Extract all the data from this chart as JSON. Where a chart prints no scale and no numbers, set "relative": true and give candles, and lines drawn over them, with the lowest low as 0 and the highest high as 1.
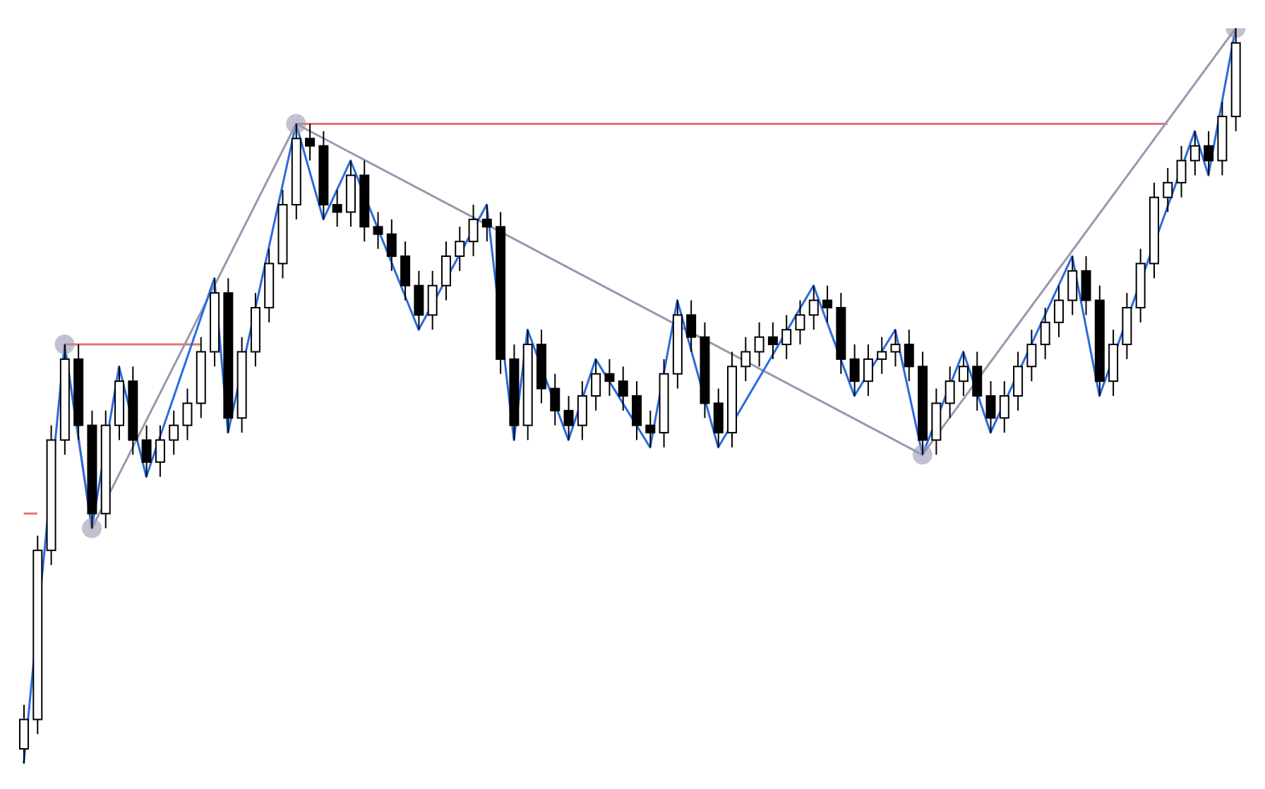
{
  "chart_data": {
    "type": "candlestick",
    "relative": true,
    "color": "#000000",
    "categories": [
      null,
      null,
      null,
      null,
      null,
      null,
      null,
      null,
      null,
      null,
      null,
      null,
      null,
      null,
      null,
      null,
      null,
      null,
      null,
      null,
      null,
      null,
      null,
      null,
      null,
      null,
      null,
      null,
      null,
      null,
      null,
      null,
      null,
      null,
      null,
      null,
      null,
      null,
      null,
      null,
      null,
      null,
      null,
      null,
      null,
      null,
      null,
      null,
      null,
      null,
      null,
      null,
      null,
      null,
      null,
      null,
      null,
      null,
      null,
      null,
      null,
      null,
      null,
      null,
      null,
      null,
      null,
      null,
      null,
      null,
      null,
      null,
      null,
      null,
      null,
      null,
      null,
      null,
      null,
      null,
      null,
      null,
      null,
      null,
      null,
      null,
      null,
      null,
      null,
      null
    ],
    "ohlc": [
      [
        0.02,
        0.08,
        0.0,
        0.06
      ],
      [
        0.06,
        0.31,
        0.04,
        0.29
      ],
      [
        0.29,
        0.46,
        0.27,
        0.44
      ],
      [
        0.44,
        0.57,
        0.42,
        0.55
      ],
      [
        0.55,
        0.57,
        0.44,
        0.46
      ],
      [
        0.46,
        0.48,
        0.32,
        0.34
      ],
      [
        0.34,
        0.48,
        0.32,
        0.46
      ],
      [
        0.46,
        0.54,
        0.44,
        0.52
      ],
      [
        0.52,
        0.54,
        0.42,
        0.44
      ],
      [
        0.44,
        0.46,
        0.39,
        0.41
      ],
      [
        0.41,
        0.46,
        0.39,
        0.44
      ],
      [
        0.44,
        0.48,
        0.42,
        0.46
      ],
      [
        0.46,
        0.51,
        0.44,
        0.49
      ],
      [
        0.49,
        0.58,
        0.47,
        0.56
      ],
      [
        0.56,
        0.66,
        0.54,
        0.64
      ],
      [
        0.64,
        0.66,
        0.45,
        0.47
      ],
      [
        0.47,
        0.58,
        0.45,
        0.56
      ],
      [
        0.56,
        0.64,
        0.54,
        0.62
      ],
      [
        0.62,
        0.7,
        0.6,
        0.68
      ],
      [
        0.68,
        0.78,
        0.66,
        0.76
      ],
      [
        0.76,
        0.87,
        0.74,
        0.85
      ],
      [
        0.85,
        0.87,
        0.82,
        0.84
      ],
      [
        0.84,
        0.86,
        0.74,
        0.76
      ],
      [
        0.76,
        0.78,
        0.73,
        0.75
      ],
      [
        0.75,
        0.82,
        0.73,
        0.8
      ],
      [
        0.8,
        0.82,
        0.71,
        0.73
      ],
      [
        0.73,
        0.75,
        0.7,
        0.72
      ],
      [
        0.72,
        0.74,
        0.67,
        0.69
      ],
      [
        0.69,
        0.71,
        0.63,
        0.65
      ],
      [
        0.65,
        0.67,
        0.59,
        0.61
      ],
      [
        0.61,
        0.67,
        0.59,
        0.65
      ],
      [
        0.65,
        0.71,
        0.63,
        0.69
      ],
      [
        0.69,
        0.73,
        0.67,
        0.71
      ],
      [
        0.71,
        0.76,
        0.69,
        0.74
      ],
      [
        0.74,
        0.76,
        0.71,
        0.73
      ],
      [
        0.73,
        0.75,
        0.53,
        0.55
      ],
      [
        0.55,
        0.57,
        0.44,
        0.46
      ],
      [
        0.46,
        0.59,
        0.44,
        0.57
      ],
      [
        0.57,
        0.59,
        0.49,
        0.51
      ],
      [
        0.51,
        0.53,
        0.46,
        0.48
      ],
      [
        0.48,
        0.5,
        0.44,
        0.46
      ],
      [
        0.46,
        0.52,
        0.44,
        0.5
      ],
      [
        0.5,
        0.55,
        0.48,
        0.53
      ],
      [
        0.53,
        0.55,
        0.5,
        0.52
      ],
      [
        0.52,
        0.54,
        0.48,
        0.5
      ],
      [
        0.5,
        0.52,
        0.44,
        0.46
      ],
      [
        0.46,
        0.48,
        0.43,
        0.45
      ],
      [
        0.45,
        0.55,
        0.43,
        0.53
      ],
      [
        0.53,
        0.63,
        0.51,
        0.61
      ],
      [
        0.61,
        0.63,
        0.56,
        0.58
      ],
      [
        0.58,
        0.6,
        0.47,
        0.49
      ],
      [
        0.49,
        0.51,
        0.43,
        0.45
      ],
      [
        0.45,
        0.56,
        0.43,
        0.54
      ],
      [
        0.54,
        0.58,
        0.52,
        0.56
      ],
      [
        0.56,
        0.6,
        0.54,
        0.58
      ],
      [
        0.58,
        0.6,
        0.55,
        0.57
      ],
      [
        0.57,
        0.61,
        0.55,
        0.59
      ],
      [
        0.59,
        0.63,
        0.57,
        0.61
      ],
      [
        0.61,
        0.65,
        0.59,
        0.63
      ],
      [
        0.63,
        0.65,
        0.6,
        0.62
      ],
      [
        0.62,
        0.64,
        0.53,
        0.55
      ],
      [
        0.55,
        0.57,
        0.5,
        0.52
      ],
      [
        0.52,
        0.57,
        0.5,
        0.55
      ],
      [
        0.55,
        0.58,
        0.53,
        0.56
      ],
      [
        0.56,
        0.59,
        0.54,
        0.57
      ],
      [
        0.57,
        0.59,
        0.52,
        0.54
      ],
      [
        0.54,
        0.56,
        0.42,
        0.44
      ],
      [
        0.44,
        0.51,
        0.42,
        0.49
      ],
      [
        0.49,
        0.54,
        0.47,
        0.52
      ],
      [
        0.52,
        0.56,
        0.5,
        0.54
      ],
      [
        0.54,
        0.56,
        0.48,
        0.5
      ],
      [
        0.5,
        0.52,
        0.45,
        0.47
      ],
      [
        0.47,
        0.52,
        0.45,
        0.5
      ],
      [
        0.5,
        0.56,
        0.48,
        0.54
      ],
      [
        0.54,
        0.59,
        0.52,
        0.57
      ],
      [
        0.57,
        0.62,
        0.55,
        0.6
      ],
      [
        0.6,
        0.65,
        0.58,
        0.63
      ],
      [
        0.63,
        0.69,
        0.61,
        0.67
      ],
      [
        0.67,
        0.69,
        0.61,
        0.63
      ],
      [
        0.63,
        0.65,
        0.5,
        0.52
      ],
      [
        0.52,
        0.59,
        0.5,
        0.57
      ],
      [
        0.57,
        0.64,
        0.55,
        0.62
      ],
      [
        0.62,
        0.7,
        0.6,
        0.68
      ],
      [
        0.68,
        0.79,
        0.66,
        0.77
      ],
      [
        0.77,
        0.81,
        0.75,
        0.79
      ],
      [
        0.79,
        0.84,
        0.77,
        0.82
      ],
      [
        0.82,
        0.86,
        0.8,
        0.84
      ],
      [
        0.84,
        0.86,
        0.8,
        0.82
      ],
      [
        0.82,
        0.9,
        0.8,
        0.88
      ],
      [
        0.88,
        1.0,
        0.86,
        0.98
      ]
    ],
    "series": [
      {
        "type": "line",
        "color": "#e57373",
        "values": [
          0.34,
          0.34,
          null,
          null,
          null,
          null,
          null,
          null,
          null,
          null,
          null,
          null,
          null,
          null,
          null,
          null,
          null,
          null,
          null,
          null,
          null,
          null,
          null,
          null,
          null,
          null,
          null,
          null,
          null,
          null,
          null,
          null,
          null,
          null,
          null,
          null,
          null,
          null,
          null,
          null,
          null,
          null,
          null,
          null,
          null,
          null,
          null,
          null,
          null,
          null,
          null,
          null,
          null,
          null,
          null,
          null,
          null,
          null,
          null,
          null,
          null,
          null,
          null,
          null,
          null,
          null,
          null,
          null,
          null,
          null,
          null,
          null,
          null,
          null,
          null,
          null,
          null,
          null,
          null,
          null,
          null,
          null,
          null,
          null,
          null,
          null,
          null,
          null,
          null,
          null
        ]
      },
      {
        "type": "line",
        "color": "#e57373",
        "values": [
          null,
          null,
          null,
          0.57,
          null,
          null,
          null,
          null,
          null,
          null,
          null,
          null,
          null,
          0.57,
          null,
          null,
          null,
          null,
          null,
          null,
          null,
          null,
          null,
          null,
          null,
          null,
          null,
          null,
          null,
          null,
          null,
          null,
          null,
          null,
          null,
          null,
          null,
          null,
          null,
          null,
          null,
          null,
          null,
          null,
          null,
          null,
          null,
          null,
          null,
          null,
          null,
          null,
          null,
          null,
          null,
          null,
          null,
          null,
          null,
          null,
          null,
          null,
          null,
          null,
          null,
          null,
          null,
          null,
          null,
          null,
          null,
          null,
          null,
          null,
          null,
          null,
          null,
          null,
          null,
          null,
          null,
          null,
          null,
          null,
          null,
          null,
          null,
          null,
          null,
          null
        ]
      },
      {
        "type": "line",
        "color": "#e57373",
        "values": [
          null,
          null,
          null,
          null,
          null,
          null,
          null,
          null,
          null,
          null,
          null,
          null,
          null,
          null,
          null,
          null,
          null,
          null,
          null,
          null,
          0.87,
          null,
          null,
          null,
          null,
          null,
          null,
          null,
          null,
          null,
          null,
          null,
          null,
          null,
          null,
          null,
          null,
          null,
          null,
          null,
          null,
          null,
          null,
          null,
          null,
          null,
          null,
          null,
          null,
          null,
          null,
          null,
          null,
          null,
          null,
          null,
          null,
          null,
          null,
          null,
          null,
          null,
          null,
          null,
          null,
          null,
          null,
          null,
          null,
          null,
          null,
          null,
          null,
          null,
          null,
          null,
          null,
          null,
          null,
          null,
          null,
          null,
          null,
          null,
          0.87,
          null,
          null,
          null,
          null,
          null
        ]
      },
      {
        "type": "line",
        "color": "#9a98b0",
        "marker": "circle",
        "values": [
          null,
          null,
          null,
          0.57,
          null,
          0.32,
          null,
          null,
          null,
          null,
          null,
          null,
          null,
          null,
          null,
          null,
          null,
          null,
          null,
          null,
          0.87,
          null,
          null,
          null,
          null,
          null,
          null,
          null,
          null,
          null,
          null,
          null,
          null,
          null,
          null,
          null,
          null,
          null,
          null,
          null,
          null,
          null,
          null,
          null,
          null,
          null,
          null,
          null,
          null,
          null,
          null,
          null,
          null,
          null,
          null,
          null,
          null,
          null,
          null,
          null,
          null,
          null,
          null,
          null,
          null,
          null,
          0.42,
          null,
          null,
          null,
          null,
          null,
          null,
          null,
          null,
          null,
          null,
          null,
          null,
          null,
          null,
          null,
          null,
          null,
          null,
          null,
          null,
          null,
          null,
          1.0
        ]
      },
      {
        "type": "line",
        "color": "#2a6bdc",
        "values": [
          0.0,
          null,
          null,
          0.57,
          null,
          0.32,
          null,
          0.54,
          null,
          0.39,
          null,
          null,
          null,
          null,
          0.66,
          0.45,
          null,
          null,
          null,
          null,
          0.87,
          null,
          0.74,
          null,
          0.82,
          null,
          null,
          null,
          null,
          0.59,
          null,
          null,
          null,
          null,
          0.76,
          null,
          0.44,
          0.59,
          null,
          null,
          0.44,
          null,
          0.55,
          null,
          null,
          null,
          0.43,
          null,
          0.63,
          null,
          null,
          0.43,
          null,
          null,
          null,
          null,
          null,
          null,
          0.65,
          null,
          null,
          0.5,
          null,
          null,
          0.59,
          null,
          0.42,
          null,
          null,
          0.56,
          null,
          0.45,
          null,
          null,
          null,
          null,
          null,
          0.69,
          null,
          0.5,
          null,
          null,
          null,
          null,
          null,
          null,
          0.86,
          0.8,
          null,
          1.0
        ]
      }
    ]
  }
}
